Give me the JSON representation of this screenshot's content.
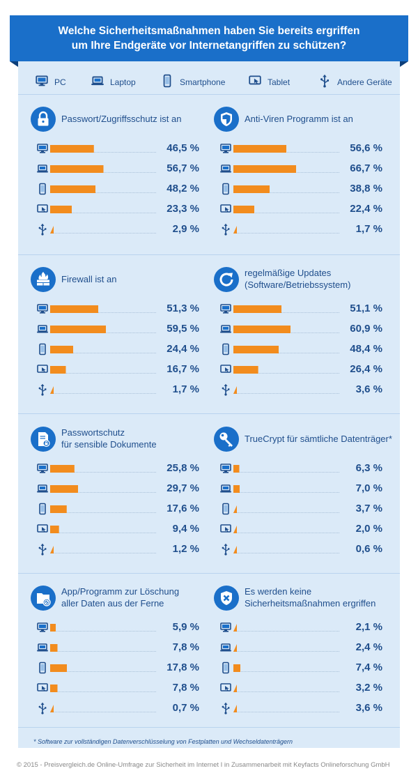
{
  "title_lines": [
    "Welche Sicherheitsmaßnahmen haben Sie bereits ergriffen",
    "um Ihre Endgeräte vor Internetangriffen zu schützen?"
  ],
  "legend": [
    {
      "device": "pc",
      "label": "PC"
    },
    {
      "device": "laptop",
      "label": "Laptop"
    },
    {
      "device": "smartphone",
      "label": "Smartphone"
    },
    {
      "device": "tablet",
      "label": "Tablet"
    },
    {
      "device": "usb",
      "label": "Andere Geräte"
    }
  ],
  "colors": {
    "accent": "#1a6fc9",
    "bar": "#f28c1e",
    "panel": "#dbeaf8",
    "text": "#1f4e8c"
  },
  "chart_data": {
    "type": "bar",
    "orientation": "horizontal",
    "unit": "%",
    "categories": [
      "PC",
      "Laptop",
      "Smartphone",
      "Tablet",
      "Andere Geräte"
    ],
    "xlim": [
      0,
      100
    ],
    "grid": false,
    "legend_placement": "top",
    "panels": [
      {
        "title": [
          "Passwort/Zugriffsschutz ist an"
        ],
        "icon": "lock-icon",
        "values": [
          46.5,
          56.7,
          48.2,
          23.3,
          2.9
        ],
        "labels": [
          "46,5 %",
          "56,7 %",
          "48,2 %",
          "23,3 %",
          "2,9 %"
        ]
      },
      {
        "title": [
          "Anti-Viren Programm ist an"
        ],
        "icon": "shield-icon",
        "values": [
          56.6,
          66.7,
          38.8,
          22.4,
          1.7
        ],
        "labels": [
          "56,6 %",
          "66,7 %",
          "38,8 %",
          "22,4 %",
          "1,7 %"
        ]
      },
      {
        "title": [
          "Firewall ist an"
        ],
        "icon": "firewall-icon",
        "values": [
          51.3,
          59.5,
          24.4,
          16.7,
          1.7
        ],
        "labels": [
          "51,3 %",
          "59,5 %",
          "24,4 %",
          "16,7 %",
          "1,7 %"
        ]
      },
      {
        "title": [
          "regelmäßige Updates",
          "(Software/Betriebssystem)"
        ],
        "icon": "refresh-icon",
        "values": [
          51.1,
          60.9,
          48.4,
          26.4,
          3.6
        ],
        "labels": [
          "51,1 %",
          "60,9 %",
          "48,4 %",
          "26,4 %",
          "3,6 %"
        ]
      },
      {
        "title": [
          "Passwortschutz",
          "für sensible Dokumente"
        ],
        "icon": "document-lock-icon",
        "values": [
          25.8,
          29.7,
          17.6,
          9.4,
          1.2
        ],
        "labels": [
          "25,8 %",
          "29,7 %",
          "17,6 %",
          "9,4 %",
          "1,2 %"
        ]
      },
      {
        "title": [
          "TrueCrypt für sämtliche Datenträger*"
        ],
        "icon": "key-icon",
        "values": [
          6.3,
          7.0,
          3.7,
          2.0,
          0.6
        ],
        "labels": [
          "6,3 %",
          "7,0 %",
          "3,7 %",
          "2,0 %",
          "0,6 %"
        ]
      },
      {
        "title": [
          "App/Programm zur Löschung",
          "aller Daten aus der Ferne"
        ],
        "icon": "folder-delete-icon",
        "values": [
          5.9,
          7.8,
          17.8,
          7.8,
          0.7
        ],
        "labels": [
          "5,9 %",
          "7,8 %",
          "17,8 %",
          "7,8 %",
          "0,7 %"
        ]
      },
      {
        "title": [
          "Es werden keine",
          "Sicherheitsmaßnahmen ergriffen"
        ],
        "icon": "shield-x-icon",
        "values": [
          2.1,
          2.4,
          7.4,
          3.2,
          3.6
        ],
        "labels": [
          "2,1 %",
          "2,4 %",
          "7,4 %",
          "3,2 %",
          "3,6 %"
        ]
      }
    ]
  },
  "footnote": "* Software zur vollständigen Datenverschlüsselung von Festplatten und Wechseldatenträgern",
  "copyright": "© 2015 - Preisvergleich.de Online-Umfrage zur Sicherheit im Internet I in Zusammenarbeit mit Keyfacts Onlineforschung GmbH"
}
